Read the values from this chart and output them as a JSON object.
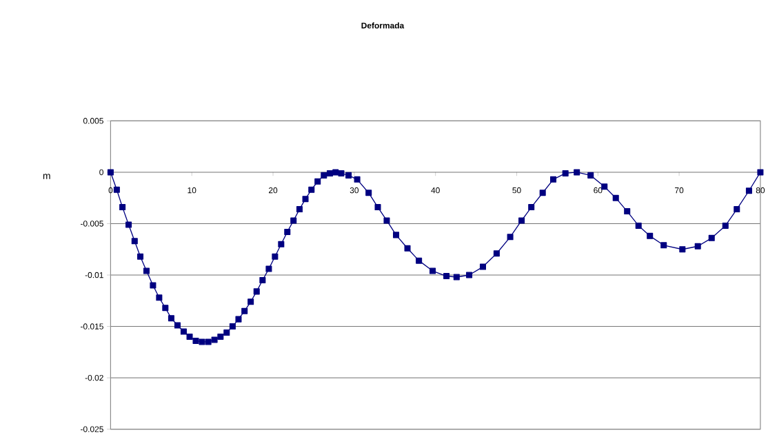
{
  "chart_data": {
    "type": "line",
    "title": "Deformada",
    "ylabel": "m",
    "x": [
      0,
      0.76,
      1.46,
      2.22,
      2.96,
      3.66,
      4.42,
      5.22,
      5.98,
      6.74,
      7.47,
      8.24,
      9.0,
      9.73,
      10.49,
      11.25,
      12.03,
      12.79,
      13.53,
      14.29,
      15.02,
      15.75,
      16.49,
      17.25,
      17.98,
      18.71,
      19.48,
      20.24,
      21.0,
      21.76,
      22.52,
      23.26,
      23.99,
      24.73,
      25.49,
      26.26,
      27.0,
      27.7,
      28.4,
      29.3,
      30.36,
      31.77,
      32.9,
      34.0,
      35.15,
      36.55,
      37.96,
      39.65,
      41.35,
      42.6,
      44.15,
      45.84,
      47.53,
      49.2,
      50.6,
      51.8,
      53.2,
      54.5,
      56.0,
      57.4,
      59.1,
      60.8,
      62.2,
      63.6,
      65.0,
      66.4,
      68.1,
      70.4,
      72.3,
      74.0,
      75.7,
      77.1,
      78.6,
      80
    ],
    "series": [
      {
        "color": "#000080",
        "values": [
          0,
          -0.0017,
          -0.0034,
          -0.0051,
          -0.0067,
          -0.0082,
          -0.0096,
          -0.011,
          -0.0122,
          -0.0132,
          -0.0142,
          -0.0149,
          -0.0155,
          -0.016,
          -0.0164,
          -0.0165,
          -0.0165,
          -0.0163,
          -0.016,
          -0.0156,
          -0.015,
          -0.0143,
          -0.0135,
          -0.0126,
          -0.0116,
          -0.0105,
          -0.0094,
          -0.0082,
          -0.007,
          -0.0058,
          -0.0047,
          -0.0036,
          -0.0026,
          -0.0017,
          -0.0009,
          -0.0003,
          -0.0001,
          0,
          -0.0001,
          -0.0003,
          -0.0007,
          -0.002,
          -0.0034,
          -0.0047,
          -0.0061,
          -0.0074,
          -0.0086,
          -0.0096,
          -0.0101,
          -0.0102,
          -0.01,
          -0.0092,
          -0.0079,
          -0.0063,
          -0.0047,
          -0.0034,
          -0.002,
          -0.0007,
          -0.0001,
          0,
          -0.0003,
          -0.0014,
          -0.0025,
          -0.0038,
          -0.0052,
          -0.0062,
          -0.0071,
          -0.0075,
          -0.0072,
          -0.0064,
          -0.0052,
          -0.0036,
          -0.0018,
          0
        ]
      }
    ],
    "xlim": [
      0,
      80
    ],
    "ylim": [
      -0.025,
      0.005
    ],
    "xticks": [
      0,
      10,
      20,
      30,
      40,
      50,
      60,
      70,
      80
    ],
    "yticks": [
      0.005,
      0,
      -0.005,
      -0.01,
      -0.015,
      -0.02,
      -0.025
    ],
    "grid": "y",
    "marker": "square",
    "line_style": "solid"
  }
}
